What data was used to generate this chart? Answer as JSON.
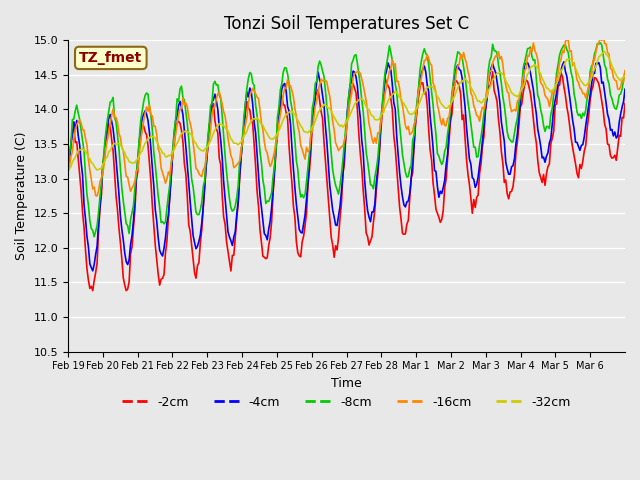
{
  "title": "Tonzi Soil Temperatures Set C",
  "xlabel": "Time",
  "ylabel": "Soil Temperature (C)",
  "ylim": [
    10.5,
    15.0
  ],
  "annotation_label": "TZ_fmet",
  "annotation_color": "#8B0000",
  "annotation_bg": "#FFFFCC",
  "bg_color": "#E8E8E8",
  "plot_bg": "#E8E8E8",
  "grid_color": "#FFFFFF",
  "line_colors": {
    "-2cm": "#FF0000",
    "-4cm": "#0000FF",
    "-8cm": "#00CC00",
    "-16cm": "#FF8800",
    "-32cm": "#CCCC00"
  },
  "legend_labels": [
    "-2cm",
    "-4cm",
    "-8cm",
    "-16cm",
    "-32cm"
  ],
  "xtick_labels": [
    "Feb 19",
    "Feb 20",
    "Feb 21",
    "Feb 22",
    "Feb 23",
    "Feb 24",
    "Feb 25",
    "Feb 26",
    "Feb 27",
    "Feb 28",
    "Mar 1",
    "Mar 2",
    "Mar 3",
    "Mar 4",
    "Mar 5",
    "Mar 6"
  ],
  "ytick_values": [
    10.5,
    11.0,
    11.5,
    12.0,
    12.5,
    13.0,
    13.5,
    14.0,
    14.5,
    15.0
  ]
}
